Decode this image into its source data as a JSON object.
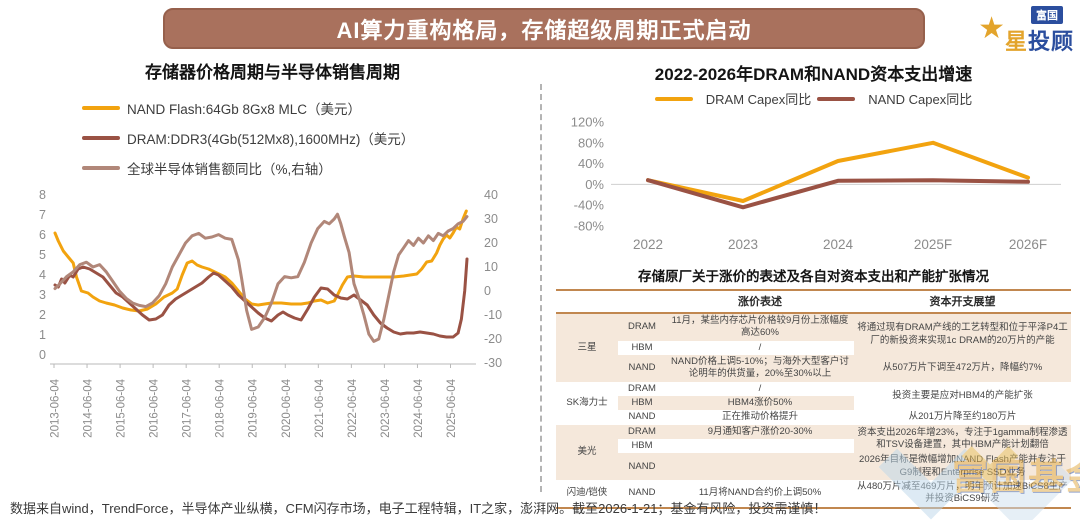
{
  "banner": {
    "title": "AI算力重构格局，存储超级周期正式启动"
  },
  "logo": {
    "org": "富国",
    "product_first": "星",
    "product_rest": "投顾",
    "star_icon": "star"
  },
  "footer": {
    "text": "数据来自wind，TrendForce，半导体产业纵横，CFM闪存市场，电子工程特辑，IT之家，澎湃网。截至2026-1-21；基金有风险，投资需谨慎！"
  },
  "watermark": {
    "text": "富国基金"
  },
  "colors": {
    "banner_bg": "#A9715D",
    "nand_yellow": "#F2A30F",
    "dram_brown": "#9A5244",
    "sales_mauve": "#B18779",
    "table_border": "#C1874F",
    "row_tan": "#F5E8DB"
  },
  "chart_data": [
    {
      "id": "price-cycle",
      "type": "line",
      "title": "存储器价格周期与半导体销售周期",
      "left_axis": {
        "ticks": [
          8,
          7,
          6,
          5,
          4,
          3,
          2,
          1,
          0
        ],
        "range": [
          0,
          8
        ]
      },
      "right_axis": {
        "ticks": [
          40,
          30,
          20,
          10,
          0,
          -10,
          -20,
          -30
        ],
        "range": [
          -30,
          40
        ]
      },
      "x_axis": {
        "labels": [
          "2013-06-04",
          "2014-06-04",
          "2015-06-04",
          "2016-06-04",
          "2017-06-04",
          "2018-06-04",
          "2019-06-04",
          "2020-06-04",
          "2021-06-04",
          "2022-06-04",
          "2023-06-04",
          "2024-06-04",
          "2025-06-04"
        ],
        "range": [
          2013.42,
          2025.95
        ]
      },
      "grid": false,
      "legend_position": "top-left",
      "series": [
        {
          "name": "NAND Flash:64Gb 8Gx8 MLC（美元）",
          "axis": "left",
          "color": "#F2A30F",
          "points": [
            [
              2013.45,
              6.1
            ],
            [
              2013.55,
              5.7
            ],
            [
              2013.7,
              5.2
            ],
            [
              2013.85,
              4.9
            ],
            [
              2014.0,
              4.6
            ],
            [
              2014.1,
              3.9
            ],
            [
              2014.25,
              3.2
            ],
            [
              2014.45,
              3.1
            ],
            [
              2014.6,
              2.9
            ],
            [
              2014.8,
              2.7
            ],
            [
              2015.0,
              2.6
            ],
            [
              2015.25,
              2.5
            ],
            [
              2015.5,
              2.35
            ],
            [
              2015.75,
              2.25
            ],
            [
              2016.0,
              2.2
            ],
            [
              2016.25,
              2.3
            ],
            [
              2016.5,
              2.55
            ],
            [
              2016.75,
              2.9
            ],
            [
              2017.0,
              3.1
            ],
            [
              2017.15,
              3.3
            ],
            [
              2017.3,
              4.0
            ],
            [
              2017.45,
              4.6
            ],
            [
              2017.6,
              4.7
            ],
            [
              2017.75,
              4.5
            ],
            [
              2017.9,
              4.4
            ],
            [
              2018.1,
              4.3
            ],
            [
              2018.35,
              4.1
            ],
            [
              2018.6,
              3.9
            ],
            [
              2018.8,
              3.6
            ],
            [
              2019.0,
              3.2
            ],
            [
              2019.2,
              2.8
            ],
            [
              2019.4,
              2.55
            ],
            [
              2019.6,
              2.5
            ],
            [
              2019.8,
              2.55
            ],
            [
              2020.0,
              2.6
            ],
            [
              2020.3,
              2.6
            ],
            [
              2020.6,
              2.55
            ],
            [
              2020.9,
              2.55
            ],
            [
              2021.1,
              2.6
            ],
            [
              2021.3,
              2.7
            ],
            [
              2021.5,
              2.75
            ],
            [
              2021.7,
              2.6
            ],
            [
              2021.9,
              2.7
            ],
            [
              2022.0,
              3.0
            ],
            [
              2022.15,
              3.5
            ],
            [
              2022.3,
              3.9
            ],
            [
              2022.5,
              3.95
            ],
            [
              2022.8,
              3.9
            ],
            [
              2023.1,
              3.9
            ],
            [
              2023.4,
              3.9
            ],
            [
              2023.7,
              3.9
            ],
            [
              2024.0,
              3.95
            ],
            [
              2024.2,
              4.0
            ],
            [
              2024.4,
              4.05
            ],
            [
              2024.55,
              4.3
            ],
            [
              2024.7,
              4.65
            ],
            [
              2024.85,
              4.7
            ],
            [
              2025.0,
              5.1
            ],
            [
              2025.1,
              5.5
            ],
            [
              2025.2,
              5.8
            ],
            [
              2025.3,
              6.0
            ],
            [
              2025.4,
              5.85
            ],
            [
              2025.5,
              6.1
            ],
            [
              2025.6,
              6.4
            ],
            [
              2025.7,
              6.3
            ],
            [
              2025.8,
              6.8
            ],
            [
              2025.9,
              7.2
            ]
          ]
        },
        {
          "name": "DRAM:DDR3(4Gb(512Mx8),1600MHz)（美元）",
          "axis": "left",
          "color": "#9A5244",
          "points": [
            [
              2013.45,
              3.5
            ],
            [
              2013.55,
              3.4
            ],
            [
              2013.65,
              3.8
            ],
            [
              2013.75,
              3.6
            ],
            [
              2013.9,
              4.0
            ],
            [
              2014.0,
              3.9
            ],
            [
              2014.15,
              4.3
            ],
            [
              2014.3,
              4.4
            ],
            [
              2014.5,
              4.3
            ],
            [
              2014.7,
              4.1
            ],
            [
              2014.9,
              3.9
            ],
            [
              2015.1,
              3.5
            ],
            [
              2015.3,
              3.1
            ],
            [
              2015.5,
              2.9
            ],
            [
              2015.7,
              2.6
            ],
            [
              2015.9,
              2.3
            ],
            [
              2016.1,
              2.0
            ],
            [
              2016.3,
              1.75
            ],
            [
              2016.5,
              1.8
            ],
            [
              2016.7,
              2.0
            ],
            [
              2016.9,
              2.5
            ],
            [
              2017.1,
              2.8
            ],
            [
              2017.3,
              3.0
            ],
            [
              2017.5,
              3.2
            ],
            [
              2017.7,
              3.4
            ],
            [
              2017.9,
              3.6
            ],
            [
              2018.1,
              3.9
            ],
            [
              2018.25,
              4.1
            ],
            [
              2018.4,
              4.0
            ],
            [
              2018.6,
              3.7
            ],
            [
              2018.8,
              3.4
            ],
            [
              2019.0,
              3.0
            ],
            [
              2019.2,
              2.7
            ],
            [
              2019.4,
              2.4
            ],
            [
              2019.6,
              2.1
            ],
            [
              2019.8,
              1.85
            ],
            [
              2020.0,
              1.7
            ],
            [
              2020.2,
              2.0
            ],
            [
              2020.35,
              2.15
            ],
            [
              2020.5,
              2.0
            ],
            [
              2020.7,
              1.85
            ],
            [
              2020.9,
              1.75
            ],
            [
              2021.1,
              2.3
            ],
            [
              2021.3,
              2.9
            ],
            [
              2021.5,
              3.35
            ],
            [
              2021.7,
              3.3
            ],
            [
              2021.9,
              3.0
            ],
            [
              2022.1,
              2.85
            ],
            [
              2022.3,
              2.8
            ],
            [
              2022.5,
              3.0
            ],
            [
              2022.7,
              2.75
            ],
            [
              2022.9,
              2.5
            ],
            [
              2023.1,
              2.0
            ],
            [
              2023.3,
              1.6
            ],
            [
              2023.5,
              1.35
            ],
            [
              2023.7,
              1.15
            ],
            [
              2023.9,
              1.05
            ],
            [
              2024.1,
              1.1
            ],
            [
              2024.3,
              1.1
            ],
            [
              2024.5,
              1.15
            ],
            [
              2024.7,
              1.1
            ],
            [
              2024.9,
              1.05
            ],
            [
              2025.1,
              0.95
            ],
            [
              2025.3,
              0.9
            ],
            [
              2025.5,
              0.9
            ],
            [
              2025.65,
              1.1
            ],
            [
              2025.75,
              1.8
            ],
            [
              2025.85,
              3.2
            ],
            [
              2025.92,
              4.8
            ]
          ]
        },
        {
          "name": "全球半导体销售额同比（%,右轴）",
          "axis": "right",
          "color": "#B18779",
          "points": [
            [
              2013.45,
              1
            ],
            [
              2013.6,
              3
            ],
            [
              2013.8,
              6
            ],
            [
              2014.0,
              8
            ],
            [
              2014.2,
              11
            ],
            [
              2014.4,
              12
            ],
            [
              2014.6,
              10
            ],
            [
              2014.8,
              11
            ],
            [
              2015.0,
              8
            ],
            [
              2015.2,
              4
            ],
            [
              2015.4,
              0
            ],
            [
              2015.6,
              -3
            ],
            [
              2015.8,
              -5
            ],
            [
              2016.0,
              -6
            ],
            [
              2016.2,
              -6.5
            ],
            [
              2016.4,
              -5
            ],
            [
              2016.6,
              -2
            ],
            [
              2016.8,
              3
            ],
            [
              2017.0,
              10
            ],
            [
              2017.2,
              15
            ],
            [
              2017.4,
              20
            ],
            [
              2017.6,
              23
            ],
            [
              2017.8,
              24
            ],
            [
              2018.0,
              22
            ],
            [
              2018.2,
              22.5
            ],
            [
              2018.4,
              23.5
            ],
            [
              2018.6,
              22
            ],
            [
              2018.8,
              21.5
            ],
            [
              2019.0,
              13
            ],
            [
              2019.1,
              5
            ],
            [
              2019.25,
              -8
            ],
            [
              2019.4,
              -16
            ],
            [
              2019.6,
              -15
            ],
            [
              2019.8,
              -11
            ],
            [
              2020.0,
              -5
            ],
            [
              2020.2,
              3
            ],
            [
              2020.4,
              6
            ],
            [
              2020.6,
              5.5
            ],
            [
              2020.8,
              6
            ],
            [
              2021.0,
              12
            ],
            [
              2021.2,
              20
            ],
            [
              2021.4,
              26
            ],
            [
              2021.6,
              29
            ],
            [
              2021.75,
              28
            ],
            [
              2021.9,
              30
            ],
            [
              2022.0,
              32
            ],
            [
              2022.1,
              28
            ],
            [
              2022.2,
              23
            ],
            [
              2022.35,
              16
            ],
            [
              2022.5,
              3
            ],
            [
              2022.65,
              -3
            ],
            [
              2022.8,
              -10
            ],
            [
              2022.95,
              -18
            ],
            [
              2023.1,
              -21
            ],
            [
              2023.25,
              -20
            ],
            [
              2023.4,
              -12
            ],
            [
              2023.55,
              -2
            ],
            [
              2023.7,
              8
            ],
            [
              2023.85,
              15
            ],
            [
              2024.0,
              18
            ],
            [
              2024.15,
              21
            ],
            [
              2024.3,
              19
            ],
            [
              2024.45,
              22
            ],
            [
              2024.6,
              20
            ],
            [
              2024.75,
              23
            ],
            [
              2024.9,
              21
            ],
            [
              2025.05,
              24
            ],
            [
              2025.2,
              23
            ],
            [
              2025.35,
              25
            ],
            [
              2025.5,
              26
            ],
            [
              2025.65,
              28
            ],
            [
              2025.8,
              29
            ],
            [
              2025.92,
              31
            ]
          ]
        }
      ]
    },
    {
      "id": "capex-growth",
      "type": "line",
      "title": "2022-2026年DRAM和NAND资本支出增速",
      "categories": [
        "2022",
        "2023",
        "2024",
        "2025F",
        "2026F"
      ],
      "y_ticks": [
        {
          "label": "120%",
          "value": 120
        },
        {
          "label": "80%",
          "value": 80
        },
        {
          "label": "40%",
          "value": 40
        },
        {
          "label": "0%",
          "value": 0
        },
        {
          "label": "-40%",
          "value": -40
        },
        {
          "label": "-80%",
          "value": -80
        }
      ],
      "ylim": [
        -100,
        140
      ],
      "grid": "zero-line-only",
      "legend_position": "top-center",
      "series": [
        {
          "name": "DRAM Capex同比",
          "color": "#F2A30F",
          "values": [
            8,
            -32,
            45,
            80,
            13
          ]
        },
        {
          "name": "NAND Capex同比",
          "color": "#9A5244",
          "values": [
            8,
            -44,
            7,
            8,
            5
          ]
        }
      ]
    }
  ],
  "table": {
    "title": "存储原厂关于涨价的表述及各自对资本支出和产能扩张情况",
    "header": {
      "statement": "涨价表述",
      "outlook": "资本开支展望"
    },
    "groups": [
      {
        "company": "三星",
        "rows": [
          {
            "type": "DRAM",
            "statement": "11月，某些内存芯片价格较9月份上涨幅度高达60%",
            "outlook": "将通过现有DRAM产线的工艺转型和位于平泽P4工厂的新投资来实现1c DRAM的20万片的产能"
          },
          {
            "type": "HBM",
            "statement": "/"
          },
          {
            "type": "NAND",
            "statement": "NAND价格上调5-10%；与海外大型客户讨论明年的供货量，20%至30%以上",
            "outlook": "从507万片下调至472万片，降幅约7%"
          }
        ]
      },
      {
        "company": "SK海力士",
        "rows": [
          {
            "type": "DRAM",
            "statement": "/",
            "outlook": "投资主要是应对HBM4的产能扩张"
          },
          {
            "type": "HBM",
            "statement": "HBM4涨价50%"
          },
          {
            "type": "NAND",
            "statement": "正在推动价格提升",
            "outlook": "从201万片降至约180万片"
          }
        ]
      },
      {
        "company": "美光",
        "rows": [
          {
            "type": "DRAM",
            "statement": "9月通知客户涨价20-30%",
            "outlook": "资本支出2026年增23%，专注于1gamma制程渗透和TSV设备建置，其中HBM产能计划翻倍"
          },
          {
            "type": "HBM",
            "statement": ""
          },
          {
            "type": "NAND",
            "statement": "",
            "outlook": "2026年目标是微幅增加NAND Flash产能并专注于G9制程和Enterprise SSD业务"
          }
        ]
      },
      {
        "company": "闪迪/铠侠",
        "rows": [
          {
            "type": "NAND",
            "statement": "11月将NAND合约价上调50%",
            "outlook": "从480万片减至469万片，明年预计加速BiCS8生产并投资BiCS9研发"
          }
        ]
      }
    ]
  }
}
